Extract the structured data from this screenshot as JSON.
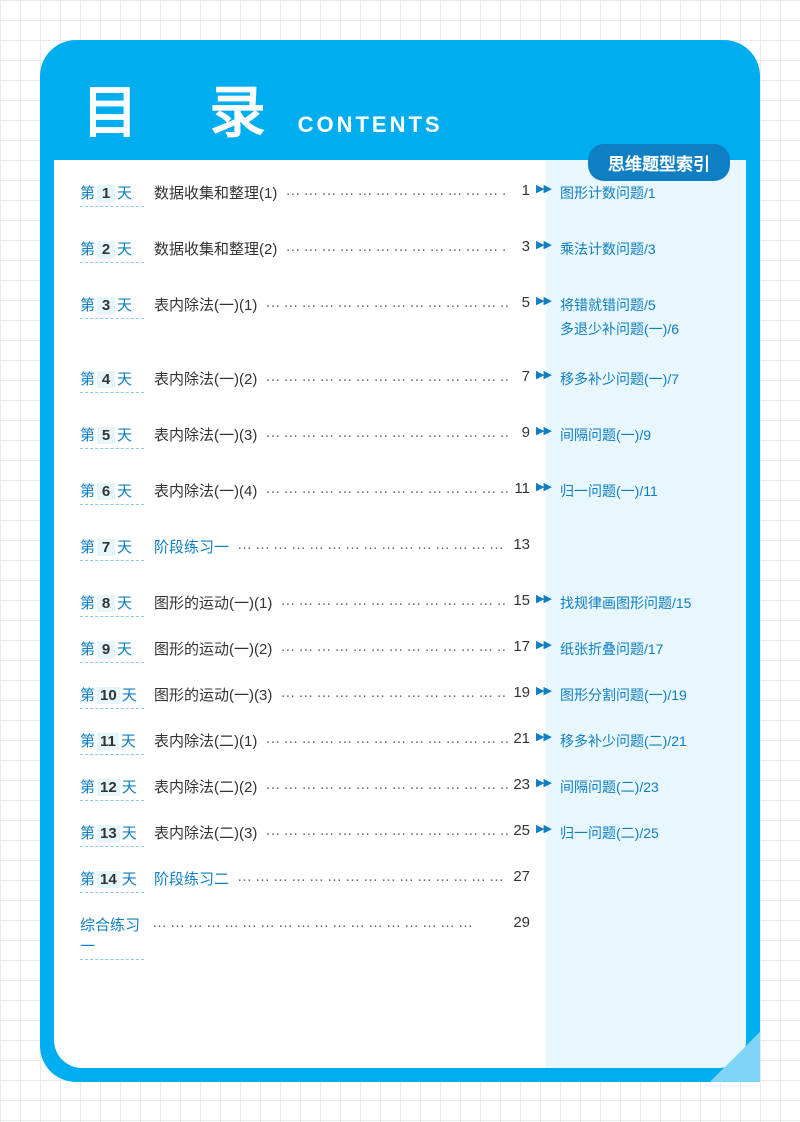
{
  "title_cn": "目 录",
  "title_en": "CONTENTS",
  "index_badge": "思维题型索引",
  "colors": {
    "frame": "#00aeef",
    "badge": "#0d7fc2",
    "accent": "#0d7fc2",
    "right_col_bg": "#e8f6fd",
    "grid": "#e5ecf0"
  },
  "entries": [
    {
      "day": "1",
      "topic": "数据收集和整理(1)",
      "page": "1",
      "index": [
        "图形计数问题/1"
      ]
    },
    {
      "day": "2",
      "topic": "数据收集和整理(2)",
      "page": "3",
      "index": [
        "乘法计数问题/3"
      ]
    },
    {
      "day": "3",
      "topic": "表内除法(一)(1)",
      "page": "5",
      "index": [
        "将错就错问题/5",
        "多退少补问题(一)/6"
      ]
    },
    {
      "day": "4",
      "topic": "表内除法(一)(2)",
      "page": "7",
      "index": [
        "移多补少问题(一)/7"
      ]
    },
    {
      "day": "5",
      "topic": "表内除法(一)(3)",
      "page": "9",
      "index": [
        "间隔问题(一)/9"
      ]
    },
    {
      "day": "6",
      "topic": "表内除法(一)(4)",
      "page": "11",
      "index": [
        "归一问题(一)/11"
      ]
    },
    {
      "day": "7",
      "topic": "阶段练习一",
      "topic_blue": true,
      "page": "13",
      "index": []
    },
    {
      "day": "8",
      "topic": "图形的运动(一)(1)",
      "page": "15",
      "index": [
        "找规律画图形问题/15"
      ]
    },
    {
      "day": "9",
      "topic": "图形的运动(一)(2)",
      "page": "17",
      "index": [
        "纸张折叠问题/17"
      ]
    },
    {
      "day": "10",
      "topic": "图形的运动(一)(3)",
      "page": "19",
      "index": [
        "图形分割问题(一)/19"
      ]
    },
    {
      "day": "11",
      "topic": "表内除法(二)(1)",
      "page": "21",
      "index": [
        "移多补少问题(二)/21"
      ]
    },
    {
      "day": "12",
      "topic": "表内除法(二)(2)",
      "page": "23",
      "index": [
        "间隔问题(二)/23"
      ]
    },
    {
      "day": "13",
      "topic": "表内除法(二)(3)",
      "page": "25",
      "index": [
        "归一问题(二)/25"
      ]
    },
    {
      "day": "14",
      "topic": "阶段练习二",
      "topic_blue": true,
      "page": "27",
      "index": []
    },
    {
      "plain": true,
      "topic": "综合练习一",
      "topic_blue": true,
      "page": "29",
      "index": []
    }
  ],
  "day_prefix": "第",
  "day_suffix": "天",
  "marker_glyph": "▶▶",
  "dots": "………………………………………………"
}
